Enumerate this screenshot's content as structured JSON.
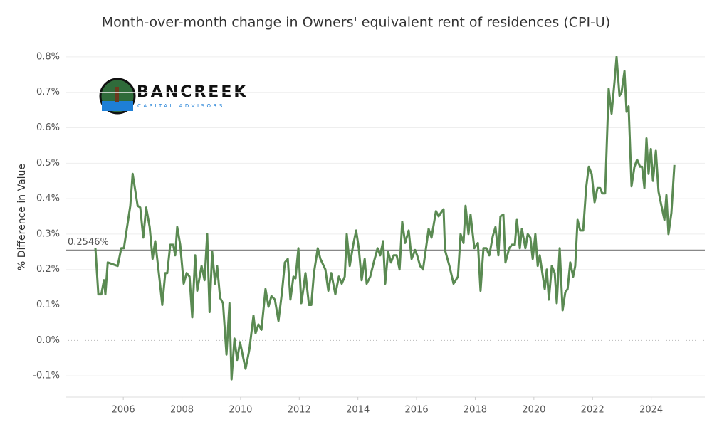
{
  "chart_data": {
    "type": "line",
    "title": "Month-over-month change in Owners' equivalent rent of residences (CPI-U)",
    "y_label": "% Difference in Value",
    "logo": {
      "name": "BANCREEK",
      "tagline": "CAPITAL ADVISORS"
    },
    "color": "#5a8a52",
    "grid": true,
    "xlim": [
      2004.03,
      2025.83
    ],
    "xticks": [
      2006,
      2008,
      2010,
      2012,
      2014,
      2016,
      2018,
      2020,
      2022,
      2024
    ],
    "ylim": [
      -0.16,
      0.84
    ],
    "yticks": [
      {
        "value": -0.1,
        "label": "-0.1%"
      },
      {
        "value": 0,
        "label": "0.0%"
      },
      {
        "value": 0.1,
        "label": "0.1%"
      },
      {
        "value": 0.2,
        "label": "0.2%"
      },
      {
        "value": 0.3,
        "label": "0.3%"
      },
      {
        "value": 0.4,
        "label": "0.4%"
      },
      {
        "value": 0.5,
        "label": "0.5%"
      },
      {
        "value": 0.6,
        "label": "0.6%"
      },
      {
        "value": 0.7,
        "label": "0.7%"
      },
      {
        "value": 0.8,
        "label": "0.8%"
      }
    ],
    "reference_line": {
      "value": 0.2546,
      "label": "0.2546%"
    },
    "x": [
      2005.05,
      2005.15,
      2005.25,
      2005.34,
      2005.39,
      2005.47,
      2005.81,
      2005.93,
      2006.02,
      2006.24,
      2006.32,
      2006.49,
      2006.58,
      2006.68,
      2006.78,
      2006.9,
      2007.0,
      2007.09,
      2007.24,
      2007.33,
      2007.43,
      2007.5,
      2007.6,
      2007.7,
      2007.77,
      2007.84,
      2007.94,
      2008.06,
      2008.16,
      2008.26,
      2008.35,
      2008.45,
      2008.52,
      2008.67,
      2008.77,
      2008.86,
      2008.94,
      2009.03,
      2009.13,
      2009.2,
      2009.3,
      2009.4,
      2009.52,
      2009.62,
      2009.69,
      2009.79,
      2009.88,
      2009.98,
      2010.08,
      2010.17,
      2010.3,
      2010.44,
      2010.51,
      2010.61,
      2010.71,
      2010.85,
      2010.95,
      2011.05,
      2011.17,
      2011.29,
      2011.41,
      2011.51,
      2011.61,
      2011.7,
      2011.8,
      2011.87,
      2011.97,
      2012.07,
      2012.14,
      2012.21,
      2012.33,
      2012.41,
      2012.5,
      2012.63,
      2012.72,
      2012.89,
      2012.99,
      2013.09,
      2013.23,
      2013.35,
      2013.45,
      2013.55,
      2013.62,
      2013.72,
      2013.84,
      2013.94,
      2014.03,
      2014.13,
      2014.23,
      2014.3,
      2014.42,
      2014.54,
      2014.67,
      2014.76,
      2014.86,
      2014.93,
      2015.03,
      2015.13,
      2015.22,
      2015.32,
      2015.42,
      2015.51,
      2015.61,
      2015.73,
      2015.83,
      2015.95,
      2016.02,
      2016.12,
      2016.22,
      2016.32,
      2016.41,
      2016.51,
      2016.66,
      2016.75,
      2016.87,
      2016.92,
      2016.97,
      2017.12,
      2017.26,
      2017.41,
      2017.5,
      2017.6,
      2017.67,
      2017.77,
      2017.84,
      2017.97,
      2018.09,
      2018.18,
      2018.28,
      2018.38,
      2018.48,
      2018.6,
      2018.69,
      2018.79,
      2018.86,
      2018.96,
      2019.03,
      2019.16,
      2019.25,
      2019.35,
      2019.42,
      2019.52,
      2019.59,
      2019.71,
      2019.79,
      2019.88,
      2019.96,
      2020.05,
      2020.13,
      2020.2,
      2020.27,
      2020.37,
      2020.44,
      2020.51,
      2020.61,
      2020.71,
      2020.78,
      2020.88,
      2020.98,
      2021.07,
      2021.15,
      2021.24,
      2021.34,
      2021.41,
      2021.49,
      2021.58,
      2021.68,
      2021.78,
      2021.87,
      2021.97,
      2022.07,
      2022.17,
      2022.26,
      2022.33,
      2022.43,
      2022.55,
      2022.65,
      2022.75,
      2022.82,
      2022.92,
      2022.99,
      2023.09,
      2023.16,
      2023.23,
      2023.33,
      2023.43,
      2023.52,
      2023.62,
      2023.69,
      2023.77,
      2023.84,
      2023.91,
      2023.99,
      2024.06,
      2024.16,
      2024.25,
      2024.35,
      2024.45,
      2024.52,
      2024.59,
      2024.69,
      2024.79
    ],
    "values": [
      0.26,
      0.13,
      0.13,
      0.17,
      0.13,
      0.22,
      0.21,
      0.26,
      0.26,
      0.38,
      0.47,
      0.38,
      0.375,
      0.29,
      0.375,
      0.32,
      0.23,
      0.28,
      0.17,
      0.1,
      0.19,
      0.19,
      0.27,
      0.27,
      0.24,
      0.32,
      0.27,
      0.16,
      0.19,
      0.18,
      0.065,
      0.24,
      0.14,
      0.21,
      0.17,
      0.3,
      0.08,
      0.25,
      0.16,
      0.21,
      0.12,
      0.105,
      -0.04,
      0.105,
      -0.11,
      0.005,
      -0.055,
      -0.005,
      -0.045,
      -0.08,
      -0.025,
      0.07,
      0.02,
      0.045,
      0.03,
      0.145,
      0.095,
      0.125,
      0.115,
      0.055,
      0.135,
      0.22,
      0.23,
      0.115,
      0.18,
      0.175,
      0.26,
      0.105,
      0.145,
      0.19,
      0.1,
      0.1,
      0.19,
      0.26,
      0.23,
      0.2,
      0.14,
      0.19,
      0.13,
      0.18,
      0.16,
      0.18,
      0.3,
      0.21,
      0.27,
      0.31,
      0.26,
      0.17,
      0.23,
      0.16,
      0.18,
      0.22,
      0.26,
      0.24,
      0.28,
      0.16,
      0.25,
      0.22,
      0.24,
      0.24,
      0.2,
      0.335,
      0.275,
      0.31,
      0.23,
      0.255,
      0.24,
      0.21,
      0.2,
      0.26,
      0.315,
      0.29,
      0.365,
      0.35,
      0.365,
      0.37,
      0.255,
      0.21,
      0.16,
      0.18,
      0.3,
      0.275,
      0.38,
      0.3,
      0.355,
      0.26,
      0.275,
      0.14,
      0.26,
      0.26,
      0.24,
      0.295,
      0.32,
      0.24,
      0.35,
      0.355,
      0.22,
      0.26,
      0.27,
      0.27,
      0.34,
      0.26,
      0.315,
      0.26,
      0.3,
      0.29,
      0.23,
      0.3,
      0.21,
      0.24,
      0.2,
      0.145,
      0.2,
      0.115,
      0.21,
      0.19,
      0.105,
      0.26,
      0.085,
      0.135,
      0.145,
      0.22,
      0.18,
      0.21,
      0.34,
      0.31,
      0.31,
      0.43,
      0.49,
      0.47,
      0.39,
      0.43,
      0.43,
      0.415,
      0.415,
      0.71,
      0.64,
      0.73,
      0.8,
      0.69,
      0.7,
      0.76,
      0.645,
      0.66,
      0.435,
      0.49,
      0.51,
      0.49,
      0.49,
      0.43,
      0.57,
      0.47,
      0.54,
      0.45,
      0.535,
      0.42,
      0.38,
      0.34,
      0.41,
      0.3,
      0.36,
      0.495
    ]
  }
}
